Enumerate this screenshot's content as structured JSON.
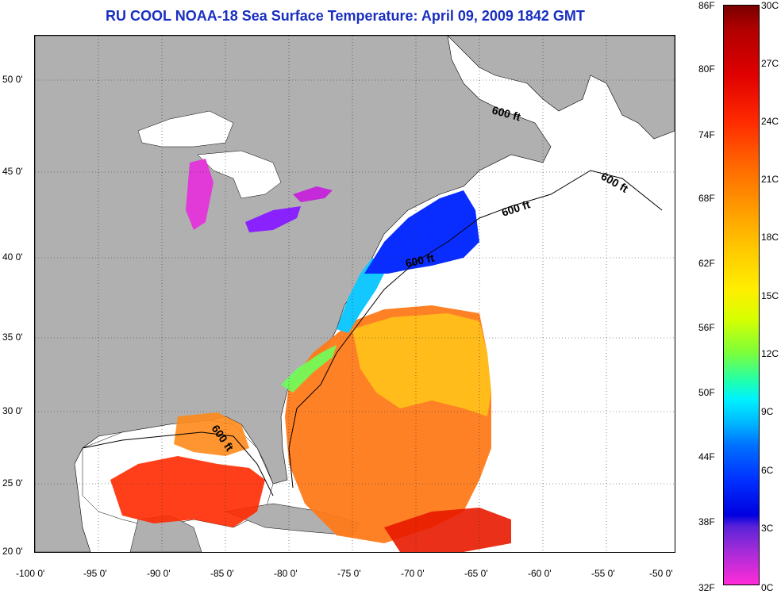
{
  "title": "RU COOL  NOAA-18  Sea Surface Temperature:  April 09, 2009 1842 GMT",
  "lat_labels": [
    "50 0'",
    "45 0'",
    "40 0'",
    "35 0'",
    "30 0'",
    "25 0'",
    "20 0'"
  ],
  "lon_labels": [
    "-100 0'",
    "-95 0'",
    "-90 0'",
    "-85 0'",
    "-80 0'",
    "-75 0'",
    "-70 0'",
    "-65 0'",
    "-60 0'",
    "-55 0'",
    "-50 0'"
  ],
  "colorbar_f": [
    "86F",
    "80F",
    "74F",
    "68F",
    "62F",
    "56F",
    "50F",
    "44F",
    "38F",
    "32F"
  ],
  "colorbar_c": [
    "30C",
    "27C",
    "24C",
    "21C",
    "18C",
    "15C",
    "12C",
    "9C",
    "6C",
    "3C",
    "0C"
  ],
  "contour_labels": [
    "600 ft",
    "600 ft",
    "600 ft",
    "600 ft",
    "600 ft"
  ],
  "colors": {
    "land": "#b0b0b0",
    "title": "#1a2fbf",
    "no_data": "#ffffff"
  }
}
